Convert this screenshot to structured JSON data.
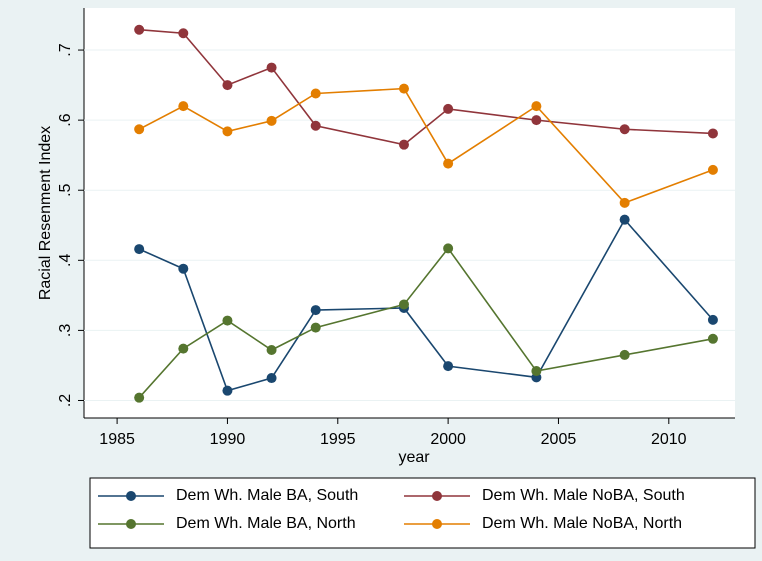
{
  "chart_data": {
    "type": "line",
    "x": [
      1986,
      1988,
      1990,
      1992,
      1994,
      1998,
      2000,
      2004,
      2008,
      2012
    ],
    "series": [
      {
        "name": "Dem Wh. Male BA, South",
        "color": "#1a476f",
        "values": [
          0.416,
          0.388,
          0.214,
          0.232,
          0.329,
          0.332,
          0.249,
          0.233,
          0.458,
          0.315
        ]
      },
      {
        "name": "Dem Wh. Male NoBA, South",
        "color": "#90353b",
        "values": [
          0.729,
          0.724,
          0.65,
          0.675,
          0.592,
          0.565,
          0.616,
          0.6,
          0.587,
          0.581
        ]
      },
      {
        "name": "Dem Wh. Male BA, North",
        "color": "#55752f",
        "values": [
          0.204,
          0.274,
          0.314,
          0.272,
          0.304,
          0.337,
          0.417,
          0.242,
          0.265,
          0.288
        ]
      },
      {
        "name": "Dem Wh. Male NoBA, North",
        "color": "#e37e00",
        "values": [
          0.587,
          0.62,
          0.584,
          0.599,
          0.638,
          0.645,
          0.538,
          0.62,
          0.482,
          0.529
        ]
      }
    ],
    "xlabel": "year",
    "ylabel": "Racial Resenment Index",
    "xlim": [
      1983.5,
      2013
    ],
    "xticks": [
      1985,
      1990,
      1995,
      2000,
      2005,
      2010
    ],
    "ylim": [
      0.175,
      0.76
    ],
    "yticks": [
      {
        "value": 0.2,
        "label": ".2"
      },
      {
        "value": 0.3,
        "label": ".3"
      },
      {
        "value": 0.4,
        "label": ".4"
      },
      {
        "value": 0.5,
        "label": ".5"
      },
      {
        "value": 0.6,
        "label": ".6"
      },
      {
        "value": 0.7,
        "label": ".7"
      }
    ],
    "grid": true,
    "legend": "bottom"
  }
}
